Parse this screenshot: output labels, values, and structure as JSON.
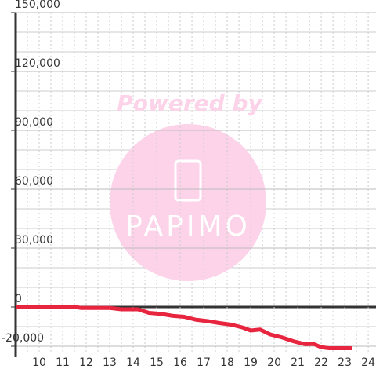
{
  "chart_data": {
    "type": "line",
    "watermark_text": "Powered by",
    "watermark_logo": "PAPIMO",
    "x": [
      9,
      11.5,
      11.8,
      13,
      13.5,
      14.2,
      14.67,
      15.17,
      15.67,
      16.17,
      16.67,
      17.17,
      17.67,
      18.17,
      18.67,
      19,
      19.4,
      19.83,
      20.33,
      20.83,
      21.33,
      21.67,
      22,
      22.33,
      23.33
    ],
    "series": [
      {
        "color": "#e8253f",
        "values": [
          0,
          0,
          -500,
          -500,
          -1200,
          -1200,
          -3000,
          -3500,
          -4500,
          -5000,
          -6500,
          -7200,
          -8200,
          -9000,
          -10500,
          -12000,
          -11500,
          -14000,
          -15500,
          -17500,
          -19000,
          -18800,
          -20500,
          -21000,
          -21000
        ]
      }
    ],
    "xlim": [
      9,
      24.33
    ],
    "ylim": [
      -24000,
      150000
    ],
    "xticks": [
      10,
      11,
      12,
      13,
      14,
      15,
      16,
      17,
      18,
      19,
      20,
      21,
      22,
      23,
      24
    ],
    "yticks": [
      {
        "value": -20000,
        "label": "-20,000"
      },
      0,
      {
        "value": 30000,
        "label": "30,000"
      },
      {
        "value": 60000,
        "label": "60,000"
      },
      {
        "value": 90000,
        "label": "90,000"
      },
      {
        "value": 120000,
        "label": "120,000"
      },
      {
        "value": 150000,
        "label": "150,000"
      }
    ],
    "y_minor_ticks": [
      -10000,
      10000,
      20000,
      40000,
      50000,
      70000,
      80000,
      100000,
      110000,
      130000,
      140000
    ],
    "x_minor_ticks": [
      9.5,
      10.5,
      11.5,
      12.5,
      13.5,
      14.5,
      15.5,
      16.5,
      17.5,
      18.5,
      19.5,
      20.5,
      21.5,
      22.5,
      23.5
    ],
    "grid": true
  }
}
